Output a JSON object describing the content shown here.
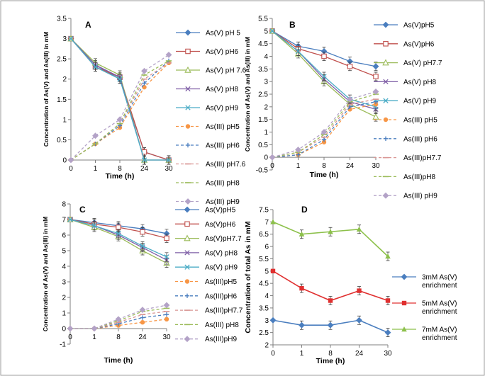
{
  "chart_data": [
    {
      "panel": "A",
      "type": "line",
      "title": "",
      "xlabel": "Time (h)",
      "ylabel": "Concentration of As(V) and As(III) in mM",
      "categories": [
        "0",
        "1",
        "8",
        "24",
        "30"
      ],
      "ylim": [
        0,
        3.5
      ],
      "yticks": [
        "0",
        "0.5",
        "1",
        "1.5",
        "2",
        "2.5",
        "3",
        "3.5"
      ],
      "legend_position": "right",
      "series": [
        {
          "name": "As(V) pH 5",
          "color": "#4a7ebf",
          "marker": "diamond",
          "dashed": false,
          "values": [
            3.0,
            2.35,
            2.0,
            0.2,
            0.0
          ]
        },
        {
          "name": "As(V) pH6",
          "color": "#c0504d",
          "marker": "square-open",
          "dashed": false,
          "values": [
            3.0,
            2.3,
            2.05,
            0.2,
            0.0
          ]
        },
        {
          "name": "As(V) pH 7.6",
          "color": "#9bbb59",
          "marker": "triangle-open",
          "dashed": false,
          "values": [
            3.0,
            2.4,
            2.1,
            0.0,
            0.0
          ]
        },
        {
          "name": "As(V)  pH8",
          "color": "#7f5fa6",
          "marker": "x",
          "dashed": false,
          "values": [
            3.0,
            2.35,
            2.05,
            0.0,
            0.0
          ]
        },
        {
          "name": "As(V) pH9",
          "color": "#4bacc6",
          "marker": "x",
          "dashed": false,
          "values": [
            3.0,
            2.3,
            2.0,
            0.0,
            0.0
          ]
        },
        {
          "name": "As(III) pH5",
          "color": "#f79646",
          "marker": "circle",
          "dashed": true,
          "values": [
            0.0,
            0.4,
            0.8,
            1.8,
            2.4
          ]
        },
        {
          "name": "As(III) pH6",
          "color": "#4a7ebf",
          "marker": "plus",
          "dashed": true,
          "values": [
            0.0,
            0.4,
            0.85,
            1.9,
            2.45
          ]
        },
        {
          "name": "As(III) pH7.6",
          "color": "#d99694",
          "marker": "dash",
          "dashed": true,
          "values": [
            0.0,
            0.4,
            0.9,
            2.0,
            2.4
          ]
        },
        {
          "name": "As(III) pH8",
          "color": "#9bbb59",
          "marker": "dash",
          "dashed": true,
          "values": [
            0.0,
            0.4,
            0.9,
            2.1,
            2.45
          ]
        },
        {
          "name": "As(III) pH9",
          "color": "#b3a2c7",
          "marker": "diamond",
          "dashed": true,
          "values": [
            0.0,
            0.6,
            1.0,
            2.2,
            2.6
          ]
        }
      ]
    },
    {
      "panel": "B",
      "type": "line",
      "title": "",
      "xlabel": "Time (h)",
      "ylabel": "Concentration of As(V) and As(III) in mM",
      "categories": [
        "0",
        "1",
        "8",
        "24",
        "30"
      ],
      "ylim": [
        -0.5,
        5.5
      ],
      "yticks": [
        "-0.5",
        "0",
        "0.5",
        "1",
        "1.5",
        "2",
        "2.5",
        "3",
        "3.5",
        "4",
        "4.5",
        "5",
        "5.5"
      ],
      "legend_position": "right",
      "series": [
        {
          "name": "As(V)pH5",
          "color": "#4a7ebf",
          "marker": "diamond",
          "dashed": false,
          "values": [
            5.0,
            4.4,
            4.2,
            3.8,
            3.6
          ]
        },
        {
          "name": "As(V)pH6",
          "color": "#c0504d",
          "marker": "square-open",
          "dashed": false,
          "values": [
            5.0,
            4.3,
            4.0,
            3.6,
            3.2
          ]
        },
        {
          "name": "As(V) pH7.7",
          "color": "#9bbb59",
          "marker": "triangle-open",
          "dashed": false,
          "values": [
            5.0,
            4.1,
            3.0,
            2.1,
            1.6
          ]
        },
        {
          "name": "As(V) pH8",
          "color": "#7f5fa6",
          "marker": "x",
          "dashed": false,
          "values": [
            5.0,
            4.2,
            3.1,
            2.2,
            1.9
          ]
        },
        {
          "name": "As(V) pH9",
          "color": "#4bacc6",
          "marker": "x",
          "dashed": false,
          "values": [
            5.0,
            4.2,
            3.2,
            2.3,
            2.0
          ]
        },
        {
          "name": "As(III) pH5",
          "color": "#f79646",
          "marker": "circle",
          "dashed": true,
          "values": [
            0.0,
            0.1,
            0.6,
            1.9,
            2.1
          ]
        },
        {
          "name": "As(III) pH6",
          "color": "#4a7ebf",
          "marker": "plus",
          "dashed": true,
          "values": [
            0.0,
            0.1,
            0.7,
            2.0,
            2.2
          ]
        },
        {
          "name": "As(III)pH7.7",
          "color": "#d99694",
          "marker": "dash",
          "dashed": true,
          "values": [
            0.0,
            0.2,
            0.8,
            2.1,
            2.3
          ]
        },
        {
          "name": "As(III)pH8",
          "color": "#9bbb59",
          "marker": "dash",
          "dashed": true,
          "values": [
            0.0,
            0.2,
            0.9,
            2.2,
            2.5
          ]
        },
        {
          "name": "As(III) pH9",
          "color": "#b3a2c7",
          "marker": "diamond",
          "dashed": true,
          "values": [
            0.0,
            0.3,
            1.0,
            2.3,
            2.6
          ]
        }
      ]
    },
    {
      "panel": "C",
      "type": "line",
      "title": "",
      "xlabel": "Time (h)",
      "ylabel": "Concentration of As(V) and As(III) in mM",
      "categories": [
        "0",
        "1",
        "8",
        "24",
        "30"
      ],
      "ylim": [
        -1,
        8
      ],
      "yticks": [
        "-1",
        "0",
        "1",
        "2",
        "3",
        "4",
        "5",
        "6",
        "7",
        "8"
      ],
      "legend_position": "right",
      "series": [
        {
          "name": "As(V)pH5",
          "color": "#4a7ebf",
          "marker": "diamond",
          "dashed": false,
          "values": [
            7.0,
            6.8,
            6.6,
            6.4,
            6.1
          ]
        },
        {
          "name": "As(V)pH6",
          "color": "#c0504d",
          "marker": "square-open",
          "dashed": false,
          "values": [
            7.0,
            6.7,
            6.5,
            6.2,
            5.8
          ]
        },
        {
          "name": "As(V)pH7.7",
          "color": "#9bbb59",
          "marker": "triangle-open",
          "dashed": false,
          "values": [
            7.0,
            6.5,
            5.9,
            5.0,
            4.2
          ]
        },
        {
          "name": "As(V) pH8",
          "color": "#7f5fa6",
          "marker": "x",
          "dashed": false,
          "values": [
            7.0,
            6.6,
            6.0,
            5.2,
            4.4
          ]
        },
        {
          "name": "As(V) pH9",
          "color": "#4bacc6",
          "marker": "x",
          "dashed": false,
          "values": [
            7.0,
            6.6,
            6.1,
            5.3,
            4.6
          ]
        },
        {
          "name": "As(III)pH5",
          "color": "#f79646",
          "marker": "circle",
          "dashed": true,
          "values": [
            0.0,
            0.0,
            0.2,
            0.4,
            0.6
          ]
        },
        {
          "name": "As(III)pH6",
          "color": "#4a7ebf",
          "marker": "plus",
          "dashed": true,
          "values": [
            0.0,
            0.0,
            0.3,
            0.7,
            0.9
          ]
        },
        {
          "name": "As(III)pH7.7",
          "color": "#d99694",
          "marker": "dash",
          "dashed": true,
          "values": [
            0.0,
            0.0,
            0.4,
            0.9,
            1.1
          ]
        },
        {
          "name": "As(III) pH8",
          "color": "#9bbb59",
          "marker": "dash",
          "dashed": true,
          "values": [
            0.0,
            0.0,
            0.5,
            1.1,
            1.3
          ]
        },
        {
          "name": "As(III)pH9",
          "color": "#b3a2c7",
          "marker": "diamond",
          "dashed": true,
          "values": [
            0.0,
            0.0,
            0.6,
            1.2,
            1.5
          ]
        }
      ]
    },
    {
      "panel": "D",
      "type": "line",
      "title": "",
      "xlabel": "Time (h)",
      "ylabel": "Concentration of total As in mM",
      "categories": [
        "0",
        "1",
        "8",
        "24",
        "30"
      ],
      "ylim": [
        2,
        7.5
      ],
      "yticks": [
        "2",
        "2.5",
        "3",
        "3.5",
        "4",
        "4.5",
        "5",
        "5.5",
        "6",
        "6.5",
        "7",
        "7.5"
      ],
      "legend_position": "right",
      "series": [
        {
          "name": "3mM As(V)",
          "name_line2": "enrichment",
          "color": "#4a7ebf",
          "marker": "diamond",
          "dashed": false,
          "values": [
            3.0,
            2.8,
            2.8,
            3.0,
            2.5
          ]
        },
        {
          "name": "5mM As(V)",
          "name_line2": "enrichment",
          "color": "#e03030",
          "marker": "square",
          "dashed": false,
          "values": [
            5.0,
            4.3,
            3.8,
            4.2,
            3.8
          ]
        },
        {
          "name": "7mM As(V)",
          "name_line2": "enrichment",
          "color": "#8cc04a",
          "marker": "triangle",
          "dashed": false,
          "values": [
            7.0,
            6.5,
            6.6,
            6.7,
            5.6
          ]
        }
      ]
    }
  ]
}
